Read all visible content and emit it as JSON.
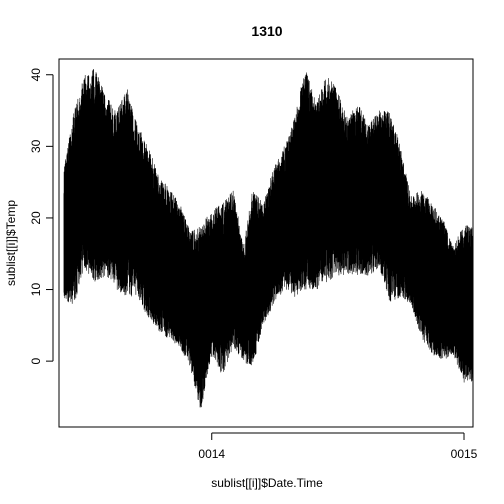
{
  "chart_data": {
    "type": "line",
    "title": "1310",
    "xlabel": "sublist[[i]]$Date.Time",
    "ylabel": "sublist[[i]]$Temp",
    "x_ticks": [
      "0014",
      "0015"
    ],
    "y_ticks": [
      0,
      10,
      20,
      30,
      40
    ],
    "xlim": [
      "0013-05-25",
      "0015-01-14"
    ],
    "ylim": [
      -9.2,
      42.2
    ],
    "grid": false,
    "legend": "none",
    "line_color": "#000000",
    "series": [
      {
        "x": [
          "0013-06-01",
          "0013-06-16",
          "0013-07-01",
          "0013-07-16",
          "0013-08-01",
          "0013-08-16",
          "0013-09-01",
          "0013-09-16",
          "0013-10-01",
          "0013-10-16",
          "0013-11-01",
          "0013-11-16",
          "0013-12-01",
          "0013-12-16",
          "0014-01-01",
          "0014-01-16",
          "0014-02-01",
          "0014-02-16",
          "0014-03-01",
          "0014-03-16",
          "0014-04-01",
          "0014-04-16",
          "0014-05-01",
          "0014-05-16",
          "0014-06-01",
          "0014-06-16",
          "0014-07-01",
          "0014-07-16",
          "0014-08-01",
          "0014-08-16",
          "0014-09-01",
          "0014-09-16",
          "0014-10-01",
          "0014-10-16",
          "0014-11-01",
          "0014-11-16",
          "0014-12-01",
          "0014-12-16",
          "0015-01-01"
        ],
        "low": [
          8,
          8,
          13,
          11,
          12,
          10,
          9,
          9,
          6,
          4,
          3,
          2,
          -1,
          -7,
          1,
          -2,
          2,
          0,
          -1,
          5,
          8,
          10,
          9,
          10,
          10,
          11,
          12,
          12,
          12,
          12,
          13,
          8,
          9,
          8,
          3,
          1,
          0,
          1,
          -3
        ],
        "high": [
          27,
          35,
          40,
          41,
          37,
          35,
          38,
          33,
          30,
          26,
          24,
          22,
          18,
          19,
          21,
          22,
          24,
          16,
          24,
          22,
          27,
          30,
          34,
          41,
          36,
          40,
          38,
          34,
          36,
          33,
          35,
          35,
          30,
          23,
          24,
          22,
          20,
          16,
          19
        ]
      }
    ]
  }
}
